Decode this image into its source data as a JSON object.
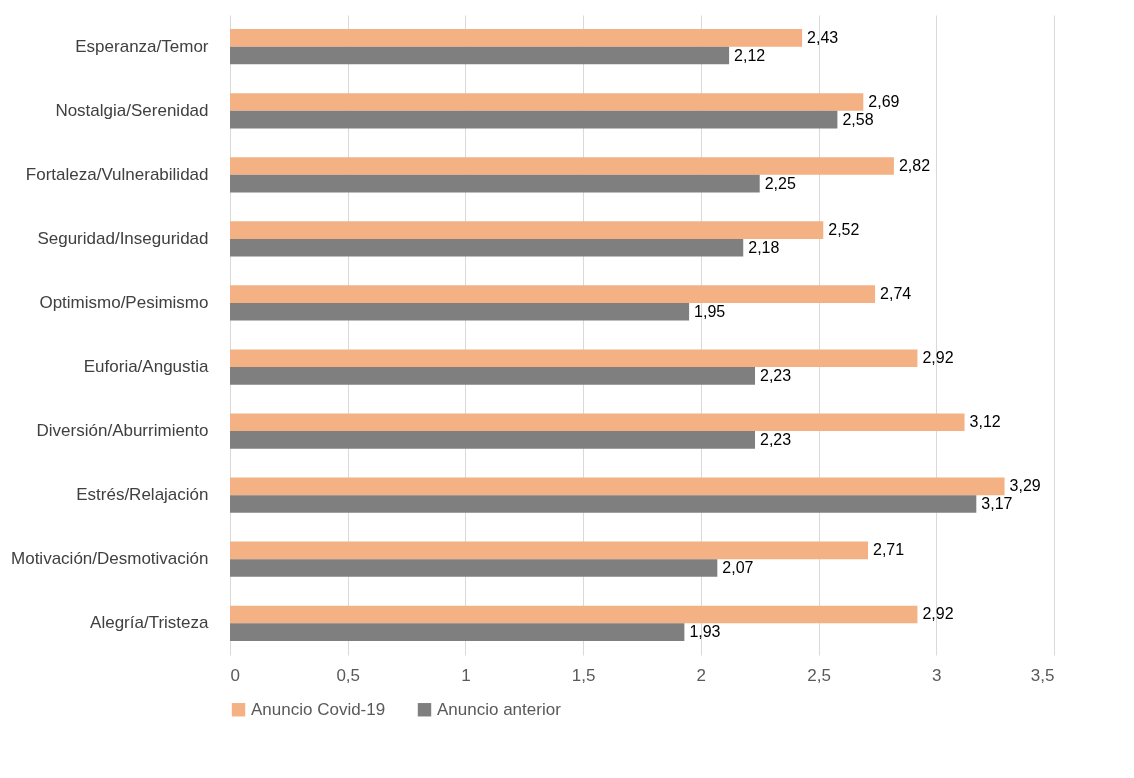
{
  "chart_data": {
    "type": "bar",
    "orientation": "horizontal",
    "categories": [
      "Esperanza/Temor",
      "Nostalgia/Serenidad",
      "Fortaleza/Vulnerabilidad",
      "Seguridad/Inseguridad",
      "Optimismo/Pesimismo",
      "Euforia/Angustia",
      "Diversión/Aburrimiento",
      "Estrés/Relajación",
      "Motivación/Desmotivación",
      "Alegría/Tristeza"
    ],
    "series": [
      {
        "name": "Anuncio Covid-19",
        "color": "#f4b183",
        "values": [
          2.43,
          2.69,
          2.82,
          2.52,
          2.74,
          2.92,
          3.12,
          3.29,
          2.71,
          2.92
        ],
        "value_labels": [
          "2,43",
          "2,69",
          "2,82",
          "2,52",
          "2,74",
          "2,92",
          "3,12",
          "3,29",
          "2,71",
          "2,92"
        ]
      },
      {
        "name": "Anuncio anterior",
        "color": "#7f7f7f",
        "values": [
          2.12,
          2.58,
          2.25,
          2.18,
          1.95,
          2.23,
          2.23,
          3.17,
          2.07,
          1.93
        ],
        "value_labels": [
          "2,12",
          "2,58",
          "2,25",
          "2,18",
          "1,95",
          "2,23",
          "2,23",
          "3,17",
          "2,07",
          "1,93"
        ]
      }
    ],
    "xlim": [
      0,
      3.5
    ],
    "xticks": [
      0,
      {
        "value": 0.5,
        "label": "0,5"
      },
      1,
      {
        "value": 1.5,
        "label": "1,5"
      },
      2,
      {
        "value": 2.5,
        "label": "2,5"
      },
      3,
      {
        "value": 3.5,
        "label": "3,5"
      }
    ],
    "grid": "x",
    "legend": "bottom"
  }
}
